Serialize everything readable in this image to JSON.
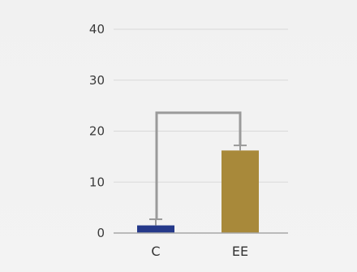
{
  "chart_data": {
    "type": "bar",
    "title": "",
    "xlabel": "",
    "ylabel": "",
    "categories": [
      "C",
      "EE"
    ],
    "values": [
      1.5,
      16.2
    ],
    "error": [
      1.2,
      1.0
    ],
    "ylim": [
      0,
      40
    ],
    "yticks": [
      0,
      10,
      20,
      30,
      40
    ],
    "grid": true,
    "colors": [
      "#25398a",
      "#a8893a"
    ],
    "bracket_value": 23.6
  }
}
